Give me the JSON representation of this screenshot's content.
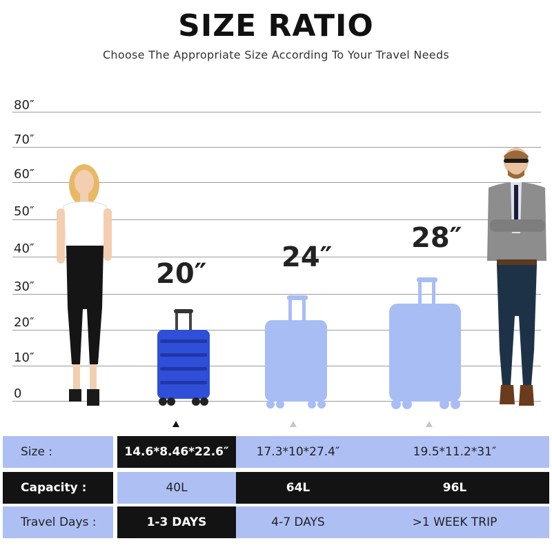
{
  "header": {
    "title": "SIZE RATIO",
    "subtitle": "Choose The Appropriate Size According To Your Travel Needs"
  },
  "scale": {
    "labels": [
      "80″",
      "70″",
      "60″",
      "50″",
      "40″",
      "30″",
      "20″",
      "10″",
      "0"
    ]
  },
  "suitcases": [
    {
      "size_label": "20″",
      "color": "#2f4fd8",
      "selected": true
    },
    {
      "size_label": "24″",
      "color": "#a8bdf4",
      "selected": false
    },
    {
      "size_label": "28″",
      "color": "#a8bdf4",
      "selected": false
    }
  ],
  "specs": {
    "size": {
      "label": "Size :",
      "values": [
        "14.6*8.46*22.6″",
        "17.3*10*27.4″",
        "19.5*11.2*31″"
      ]
    },
    "capacity": {
      "label": "Capacity :",
      "values": [
        "40L",
        "64L",
        "96L"
      ]
    },
    "travel_days": {
      "label": "Travel Days :",
      "values": [
        "1-3 DAYS",
        "4-7 DAYS",
        ">1 WEEK TRIP"
      ]
    }
  },
  "colors": {
    "accent_blue": "#aebff4",
    "dark": "#131313",
    "suitcase_blue": "#2f4fd8"
  }
}
